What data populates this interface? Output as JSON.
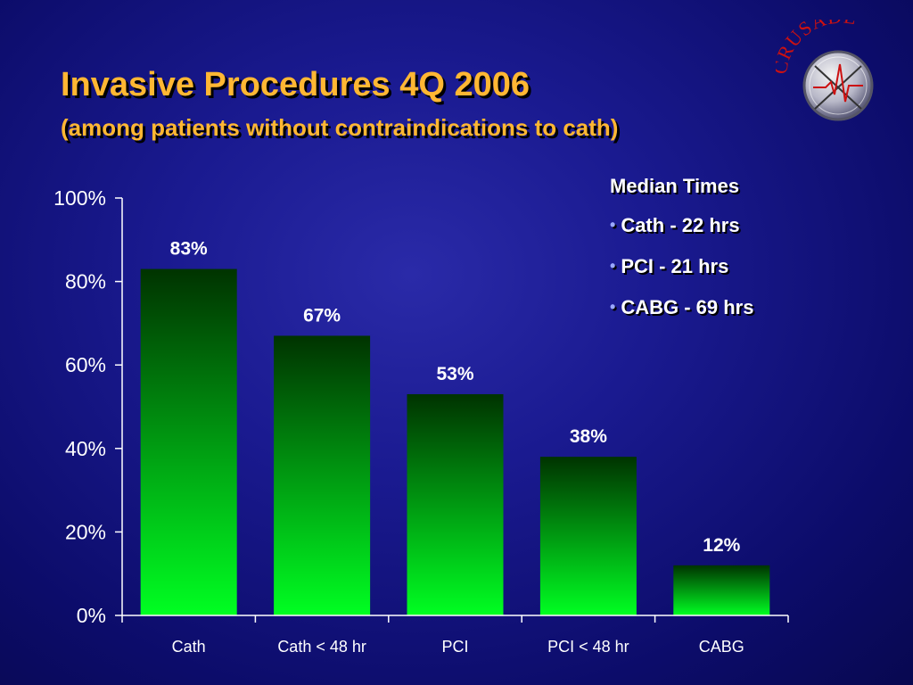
{
  "slide": {
    "title": "Invasive Procedures 4Q 2006",
    "subtitle": "(among patients without contraindications to cath)",
    "logo_text": "CRUSADE"
  },
  "median_times": {
    "heading": "Median Times",
    "items": [
      "Cath - 22 hrs",
      "PCI - 21 hrs",
      "CABG - 69 hrs"
    ]
  },
  "colors": {
    "title": "#ffb733",
    "bar_top": "#003300",
    "bar_bottom": "#00ff22",
    "axis_text": "#ffffff"
  },
  "chart_data": {
    "type": "bar",
    "title": "",
    "xlabel": "",
    "ylabel": "",
    "categories": [
      "Cath",
      "Cath < 48 hr",
      "PCI",
      "PCI < 48 hr",
      "CABG"
    ],
    "values": [
      83,
      67,
      53,
      38,
      12
    ],
    "value_labels": [
      "83%",
      "67%",
      "53%",
      "38%",
      "12%"
    ],
    "yticks": [
      0,
      20,
      40,
      60,
      80,
      100
    ],
    "ytick_labels": [
      "0%",
      "20%",
      "40%",
      "60%",
      "80%",
      "100%"
    ],
    "ylim": [
      0,
      100
    ],
    "grid": false,
    "legend": "none"
  }
}
